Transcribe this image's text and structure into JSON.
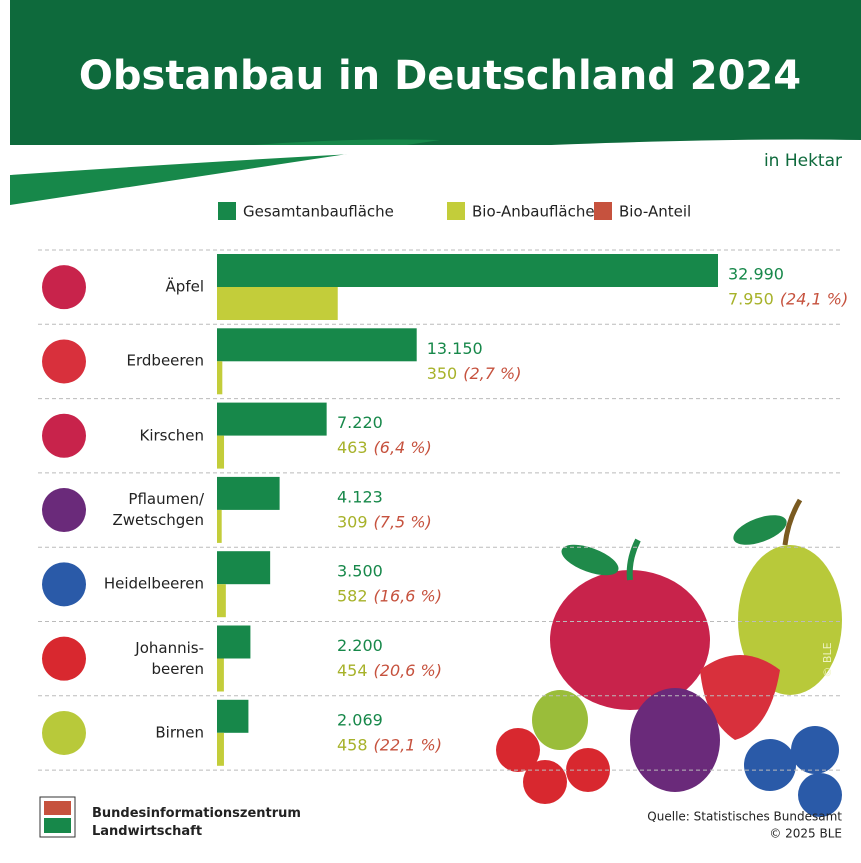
{
  "chart_data": {
    "type": "bar",
    "orientation": "horizontal",
    "title": "Obstanbau in Deutschland 2024",
    "unit": "in Hektar",
    "categories": [
      "Äpfel",
      "Erdbeeren",
      "Kirschen",
      "Pflaumen/\nZwetschgen",
      "Heidelbeeren",
      "Johannis-\nbeeren",
      "Birnen"
    ],
    "series": [
      {
        "name": "Gesamtanbaufläche",
        "color": "#17884a",
        "values": [
          32990,
          13150,
          7220,
          4123,
          3500,
          2200,
          2069
        ],
        "value_labels": [
          "32.990",
          "13.150",
          "7.220",
          "4.123",
          "3.500",
          "2.200",
          "2.069"
        ]
      },
      {
        "name": "Bio-Anbaufläche",
        "color": "#c3cd3a",
        "values": [
          7950,
          350,
          463,
          309,
          582,
          454,
          458
        ],
        "value_labels": [
          "7.950",
          "350",
          "463",
          "309",
          "582",
          "454",
          "458"
        ]
      },
      {
        "name": "Bio-Anteil",
        "color": "#c6523e",
        "values": [
          24.1,
          2.7,
          6.4,
          7.5,
          16.6,
          20.6,
          22.1
        ],
        "value_labels": [
          "(24,1 %)",
          "(2,7 %)",
          "(6,4 %)",
          "(7,5 %)",
          "(16,6 %)",
          "(20,6 %)",
          "(22,1 %)"
        ]
      }
    ],
    "source": "Quelle: Statistisches Bundesamt",
    "copyright": "© 2025 BLE",
    "image_credit": "© BLE",
    "logo": "Bundesinformationszentrum\nLandwirtschaft"
  }
}
